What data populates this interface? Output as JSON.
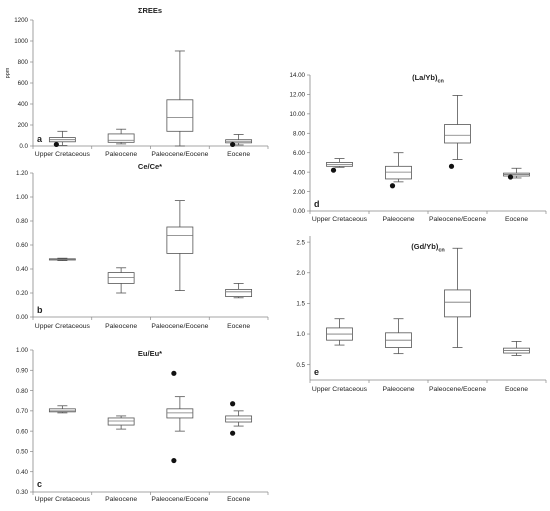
{
  "chart_data": [
    {
      "panel": "a",
      "type": "box",
      "title": "ΣREEs",
      "ylabel": "ppm",
      "ylim": [
        0,
        1200
      ],
      "yticks": [
        "0.0",
        "200",
        "400",
        "600",
        "800",
        "1000",
        "1200"
      ],
      "yticks_values": [
        0,
        200,
        400,
        600,
        800,
        1000,
        1200
      ],
      "categories": [
        "Upper Cretaceous",
        "Paleocene",
        "Paleocene/Eocene",
        "Eocene"
      ],
      "boxes": [
        {
          "min": 5,
          "q1": 40,
          "median": 60,
          "q3": 80,
          "max": 140,
          "outliers": [
            15
          ]
        },
        {
          "min": 20,
          "q1": 35,
          "median": 55,
          "q3": 115,
          "max": 160,
          "outliers": []
        },
        {
          "min": 0,
          "q1": 140,
          "median": 270,
          "q3": 440,
          "max": 905,
          "outliers": []
        },
        {
          "min": 10,
          "q1": 30,
          "median": 45,
          "q3": 60,
          "max": 110,
          "outliers": [
            15
          ]
        }
      ]
    },
    {
      "panel": "b",
      "type": "box",
      "title": "Ce/Ce*",
      "ylim": [
        0,
        1.2
      ],
      "yticks": [
        "0.00",
        "0.20",
        "0.40",
        "0.60",
        "0.80",
        "1.00",
        "1.20"
      ],
      "yticks_values": [
        0,
        0.2,
        0.4,
        0.6,
        0.8,
        1.0,
        1.2
      ],
      "categories": [
        "Upper Cretaceous",
        "Paleocene",
        "Paleocene/Eocene",
        "Eocene"
      ],
      "boxes": [
        {
          "min": 0.47,
          "q1": 0.475,
          "median": 0.48,
          "q3": 0.485,
          "max": 0.49,
          "outliers": []
        },
        {
          "min": 0.2,
          "q1": 0.28,
          "median": 0.33,
          "q3": 0.37,
          "max": 0.41,
          "outliers": []
        },
        {
          "min": 0.22,
          "q1": 0.53,
          "median": 0.68,
          "q3": 0.75,
          "max": 0.97,
          "outliers": []
        },
        {
          "min": 0.16,
          "q1": 0.17,
          "median": 0.21,
          "q3": 0.23,
          "max": 0.28,
          "outliers": []
        }
      ]
    },
    {
      "panel": "c",
      "type": "box",
      "title": "Eu/Eu*",
      "ylim": [
        0.3,
        1.0
      ],
      "yticks": [
        "0.30",
        "0.40",
        "0.50",
        "0.60",
        "0.70",
        "0.80",
        "0.90",
        "1.00"
      ],
      "yticks_values": [
        0.3,
        0.4,
        0.5,
        0.6,
        0.7,
        0.8,
        0.9,
        1.0
      ],
      "categories": [
        "Upper Cretaceous",
        "Paleocene",
        "Paleocene/Eocene",
        "Eocene"
      ],
      "boxes": [
        {
          "min": 0.69,
          "q1": 0.695,
          "median": 0.7,
          "q3": 0.71,
          "max": 0.725,
          "outliers": []
        },
        {
          "min": 0.61,
          "q1": 0.63,
          "median": 0.65,
          "q3": 0.665,
          "max": 0.675,
          "outliers": []
        },
        {
          "min": 0.6,
          "q1": 0.665,
          "median": 0.69,
          "q3": 0.71,
          "max": 0.77,
          "outliers": [
            0.885,
            0.455
          ]
        },
        {
          "min": 0.625,
          "q1": 0.645,
          "median": 0.66,
          "q3": 0.675,
          "max": 0.7,
          "outliers": [
            0.735,
            0.59
          ]
        }
      ]
    },
    {
      "panel": "d",
      "type": "box",
      "title": "(La/Yb)",
      "title_subscript": "cn",
      "ylim": [
        0,
        14
      ],
      "yticks": [
        "0.00",
        "2.00",
        "4.00",
        "6.00",
        "8.00",
        "10.00",
        "12.00",
        "14.00"
      ],
      "yticks_values": [
        0,
        2,
        4,
        6,
        8,
        10,
        12,
        14
      ],
      "categories": [
        "Upper Cretaceous",
        "Paleocene",
        "Paleocene/Eocene",
        "Eocene"
      ],
      "boxes": [
        {
          "min": 4.5,
          "q1": 4.6,
          "median": 4.8,
          "q3": 5.0,
          "max": 5.4,
          "outliers": [
            4.2
          ]
        },
        {
          "min": 3.0,
          "q1": 3.3,
          "median": 4.0,
          "q3": 4.6,
          "max": 6.0,
          "outliers": [
            2.6
          ]
        },
        {
          "min": 5.3,
          "q1": 7.0,
          "median": 7.8,
          "q3": 8.9,
          "max": 11.9,
          "outliers": [
            4.6
          ]
        },
        {
          "min": 3.4,
          "q1": 3.6,
          "median": 3.75,
          "q3": 3.9,
          "max": 4.4,
          "outliers": [
            3.5
          ]
        }
      ]
    },
    {
      "panel": "e",
      "type": "box",
      "title": "(Gd/Yb)",
      "title_subscript": "cn",
      "ylim": [
        0.25,
        2.6
      ],
      "yticks": [
        "0.5",
        "1.0",
        "1.5",
        "2.0",
        "2.5"
      ],
      "yticks_values": [
        0.5,
        1.0,
        1.5,
        2.0,
        2.5
      ],
      "categories": [
        "Upper Cretaceous",
        "Paleocene",
        "Paleocene/Eocene",
        "Eocene"
      ],
      "boxes": [
        {
          "min": 0.82,
          "q1": 0.9,
          "median": 1.0,
          "q3": 1.1,
          "max": 1.25,
          "outliers": []
        },
        {
          "min": 0.68,
          "q1": 0.78,
          "median": 0.9,
          "q3": 1.02,
          "max": 1.25,
          "outliers": []
        },
        {
          "min": 0.78,
          "q1": 1.28,
          "median": 1.52,
          "q3": 1.72,
          "max": 2.4,
          "outliers": []
        },
        {
          "min": 0.65,
          "q1": 0.69,
          "median": 0.73,
          "q3": 0.77,
          "max": 0.88,
          "outliers": []
        }
      ]
    }
  ]
}
